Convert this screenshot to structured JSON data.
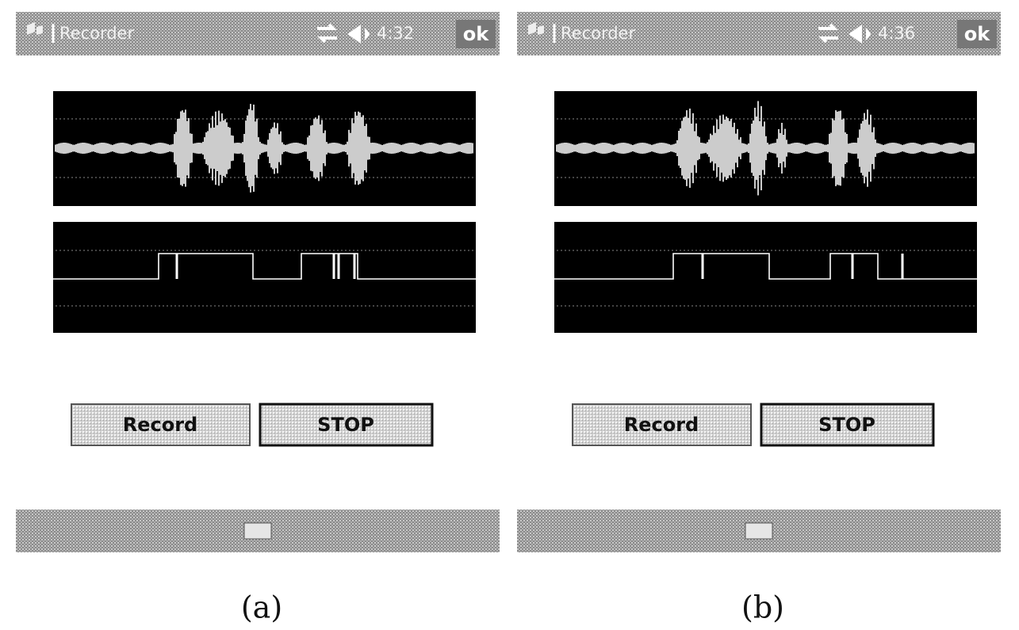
{
  "panels": [
    {
      "app_title": "Recorder",
      "time": "4:32",
      "ok": "ok",
      "record_button": "Record",
      "stop_button": "STOP",
      "caption": "(a)"
    },
    {
      "app_title": "Recorder",
      "time": "4:36",
      "ok": "ok",
      "record_button": "Record",
      "stop_button": "STOP",
      "caption": "(b)"
    }
  ]
}
